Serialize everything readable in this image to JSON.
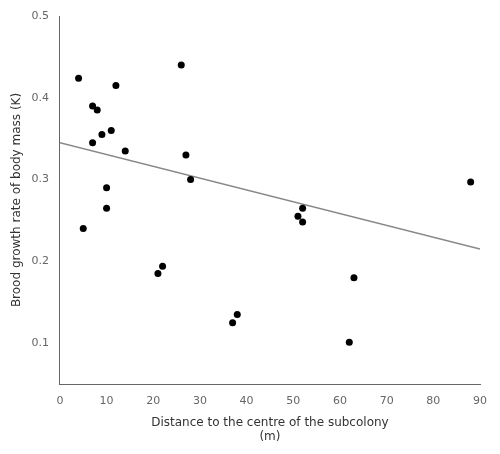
{
  "chart_data": {
    "type": "scatter",
    "xlabel": [
      "Distance to the centre of the subcolony",
      "(m)"
    ],
    "ylabel": "Brood growth rate of body mass (K)",
    "series": [
      {
        "type": "scatter",
        "color": "black",
        "x": [
          4,
          5,
          7,
          7,
          8,
          9,
          10,
          10,
          11,
          12,
          14,
          21,
          22,
          26,
          27,
          28,
          37,
          38,
          51,
          52,
          52,
          62,
          63,
          88
        ],
        "values": [
          0.424,
          0.24,
          0.345,
          0.39,
          0.385,
          0.355,
          0.29,
          0.265,
          0.36,
          0.415,
          0.335,
          0.185,
          0.194,
          0.44,
          0.33,
          0.3,
          0.125,
          0.135,
          0.255,
          0.265,
          0.248,
          0.101,
          0.18,
          0.297
        ]
      },
      {
        "type": "line",
        "color": "#888888",
        "x": [
          0,
          90
        ],
        "values": [
          0.345,
          0.215
        ]
      }
    ],
    "xlim": [
      0,
      90
    ],
    "ylim": [
      0.05,
      0.5
    ],
    "xticks": [
      0,
      10,
      20,
      30,
      40,
      50,
      60,
      70,
      80,
      90
    ],
    "yticks": [
      0.1,
      0.2,
      0.3,
      0.4,
      0.5
    ],
    "grid": false
  }
}
